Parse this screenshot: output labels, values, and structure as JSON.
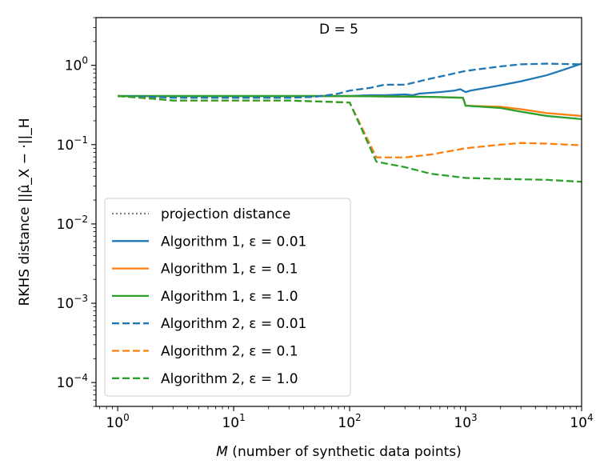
{
  "chart_data": {
    "type": "line",
    "title": "D = 5",
    "xlabel_italic": "M",
    "xlabel_rest": " (number of synthetic data points)",
    "ylabel": "RKHS distance ||μ̂_X − ·||_H",
    "xscale": "log",
    "yscale": "log",
    "xlim": [
      0.65,
      10000
    ],
    "ylim": [
      5e-05,
      4
    ],
    "xticks": [
      {
        "value": 1,
        "base": "10",
        "exp": "0"
      },
      {
        "value": 10,
        "base": "10",
        "exp": "1"
      },
      {
        "value": 100,
        "base": "10",
        "exp": "2"
      },
      {
        "value": 1000,
        "base": "10",
        "exp": "3"
      },
      {
        "value": 10000,
        "base": "10",
        "exp": "4"
      }
    ],
    "yticks": [
      {
        "value": 0.0001,
        "base": "10",
        "exp": "−4"
      },
      {
        "value": 0.001,
        "base": "10",
        "exp": "−3"
      },
      {
        "value": 0.01,
        "base": "10",
        "exp": "−2"
      },
      {
        "value": 0.1,
        "base": "10",
        "exp": "−1"
      },
      {
        "value": 1,
        "base": "10",
        "exp": "0"
      }
    ],
    "legend_position": "lower-left",
    "series": [
      {
        "name": "projection distance",
        "color": "#808080",
        "dash": "dotted",
        "x": [],
        "y": []
      },
      {
        "name": "Algorithm 1, ε = 0.01",
        "color": "#1f77b4",
        "dash": "solid",
        "x": [
          1,
          10,
          50,
          100,
          150,
          200,
          300,
          350,
          400,
          600,
          800,
          900,
          1000,
          1100,
          1500,
          2000,
          3000,
          5000,
          7000,
          10000
        ],
        "y": [
          0.41,
          0.41,
          0.41,
          0.41,
          0.42,
          0.42,
          0.43,
          0.42,
          0.44,
          0.46,
          0.48,
          0.5,
          0.46,
          0.48,
          0.52,
          0.56,
          0.63,
          0.75,
          0.88,
          1.05
        ]
      },
      {
        "name": "Algorithm 1, ε = 0.1",
        "color": "#ff7f0e",
        "dash": "solid",
        "x": [
          1,
          10,
          100,
          500,
          950,
          1000,
          2000,
          3000,
          5000,
          10000
        ],
        "y": [
          0.41,
          0.41,
          0.41,
          0.4,
          0.39,
          0.31,
          0.3,
          0.28,
          0.25,
          0.23
        ]
      },
      {
        "name": "Algorithm 1, ε = 1.0",
        "color": "#2ca02c",
        "dash": "solid",
        "x": [
          1,
          10,
          100,
          500,
          950,
          1000,
          2000,
          3000,
          5000,
          10000
        ],
        "y": [
          0.41,
          0.41,
          0.41,
          0.4,
          0.39,
          0.31,
          0.29,
          0.26,
          0.23,
          0.21
        ]
      },
      {
        "name": "Algorithm 2, ε = 0.01",
        "color": "#1f77b4",
        "dash": "dashed",
        "x": [
          1,
          2,
          3,
          10,
          30,
          50,
          80,
          100,
          150,
          200,
          300,
          500,
          1000,
          2000,
          3000,
          5000,
          7000,
          10000
        ],
        "y": [
          0.41,
          0.4,
          0.39,
          0.39,
          0.39,
          0.4,
          0.44,
          0.48,
          0.52,
          0.57,
          0.57,
          0.68,
          0.85,
          0.97,
          1.03,
          1.05,
          1.04,
          1.03
        ]
      },
      {
        "name": "Algorithm 2, ε = 0.1",
        "color": "#ff7f0e",
        "dash": "dashed",
        "x": [
          1,
          2,
          3,
          10,
          30,
          100,
          170,
          300,
          500,
          1000,
          2000,
          3000,
          5000,
          10000
        ],
        "y": [
          0.41,
          0.38,
          0.36,
          0.36,
          0.36,
          0.34,
          0.069,
          0.069,
          0.075,
          0.09,
          0.1,
          0.105,
          0.103,
          0.098
        ]
      },
      {
        "name": "Algorithm 2, ε = 1.0",
        "color": "#2ca02c",
        "dash": "dashed",
        "x": [
          1,
          2,
          3,
          10,
          30,
          100,
          170,
          300,
          500,
          1000,
          2000,
          5000,
          10000
        ],
        "y": [
          0.41,
          0.38,
          0.36,
          0.36,
          0.36,
          0.34,
          0.061,
          0.052,
          0.043,
          0.038,
          0.037,
          0.036,
          0.034
        ]
      }
    ]
  }
}
